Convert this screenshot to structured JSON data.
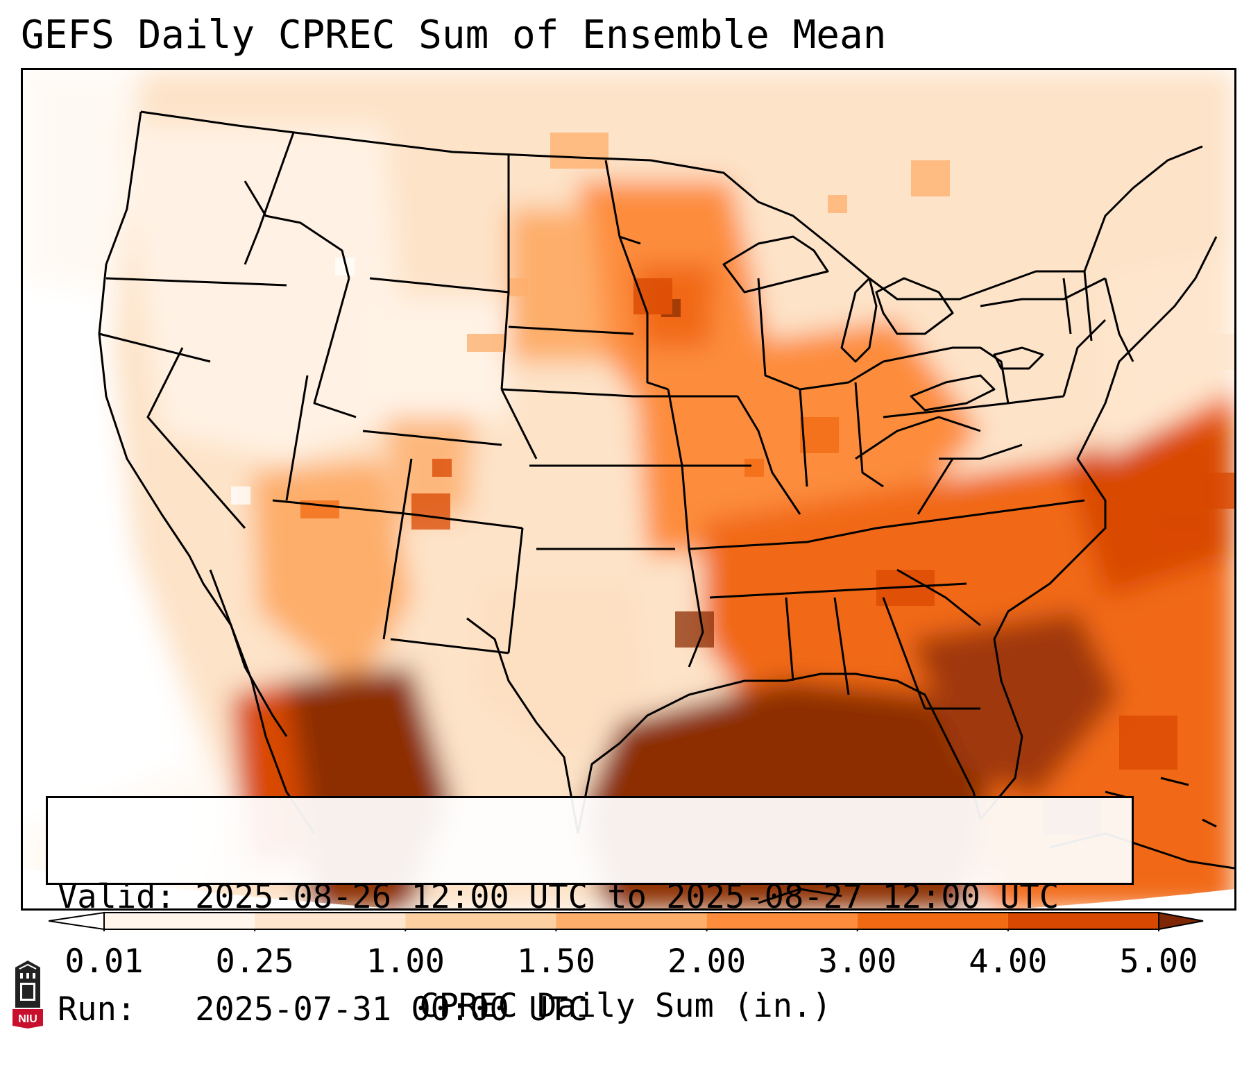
{
  "title": "GEFS Daily CPREC Sum of Ensemble Mean",
  "info": {
    "valid_line": "Valid: 2025-08-26 12:00 UTC to 2025-08-27 12:00 UTC",
    "run_line": "Run:   2025-07-31 00:00 UTC"
  },
  "colorbar": {
    "label": "CPREC Daily Sum (in.)",
    "ticks": [
      "0.01",
      "0.25",
      "1.00",
      "1.50",
      "2.00",
      "3.00",
      "4.00",
      "5.00"
    ],
    "colors": [
      "#fff5eb",
      "#fee6ce",
      "#fdd0a2",
      "#fdae6b",
      "#fd8d3c",
      "#f16913",
      "#d94801",
      "#8c2d04"
    ],
    "under_color": "#ffffff",
    "over_color": "#7f2704"
  },
  "logo": {
    "text": "NIU",
    "icon": "university-tower-icon",
    "color": "#c8102e"
  }
}
